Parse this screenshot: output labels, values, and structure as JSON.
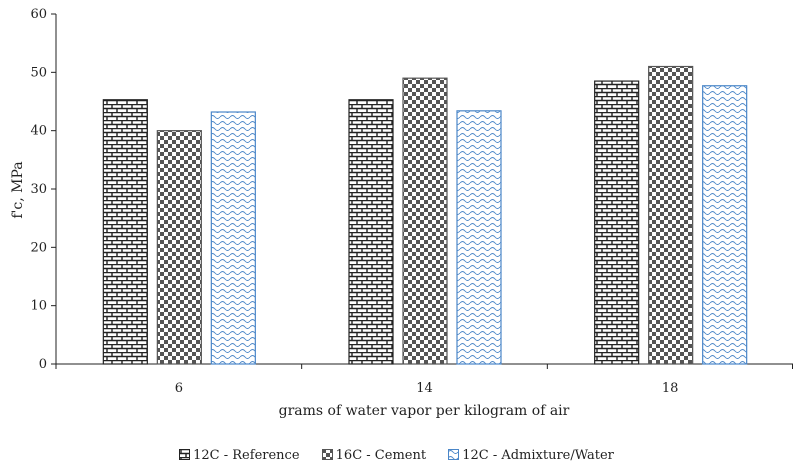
{
  "chart_data": {
    "type": "bar",
    "title": "",
    "xlabel": "grams of water vapor per kilogram of air",
    "ylabel": "f'c, MPa",
    "ylim": [
      0,
      60
    ],
    "yticks": [
      0,
      10,
      20,
      30,
      40,
      50,
      60
    ],
    "grid": false,
    "legend_position": "bottom",
    "categories": [
      "6",
      "14",
      "18"
    ],
    "series": [
      {
        "name": "12C - Reference",
        "values": [
          45.3,
          45.3,
          48.5
        ],
        "pattern": "brick",
        "color": "#222222"
      },
      {
        "name": "16C - Cement",
        "values": [
          40.0,
          49.0,
          51.0
        ],
        "pattern": "checker",
        "color": "#555555"
      },
      {
        "name": "12C - Admixture/Water",
        "values": [
          43.2,
          43.4,
          47.7
        ],
        "pattern": "wave",
        "color": "#4a86c8"
      }
    ]
  },
  "legend": {
    "items": [
      {
        "label": "12C - Reference"
      },
      {
        "label": "16C - Cement"
      },
      {
        "label": "12C - Admixture/Water"
      }
    ]
  }
}
